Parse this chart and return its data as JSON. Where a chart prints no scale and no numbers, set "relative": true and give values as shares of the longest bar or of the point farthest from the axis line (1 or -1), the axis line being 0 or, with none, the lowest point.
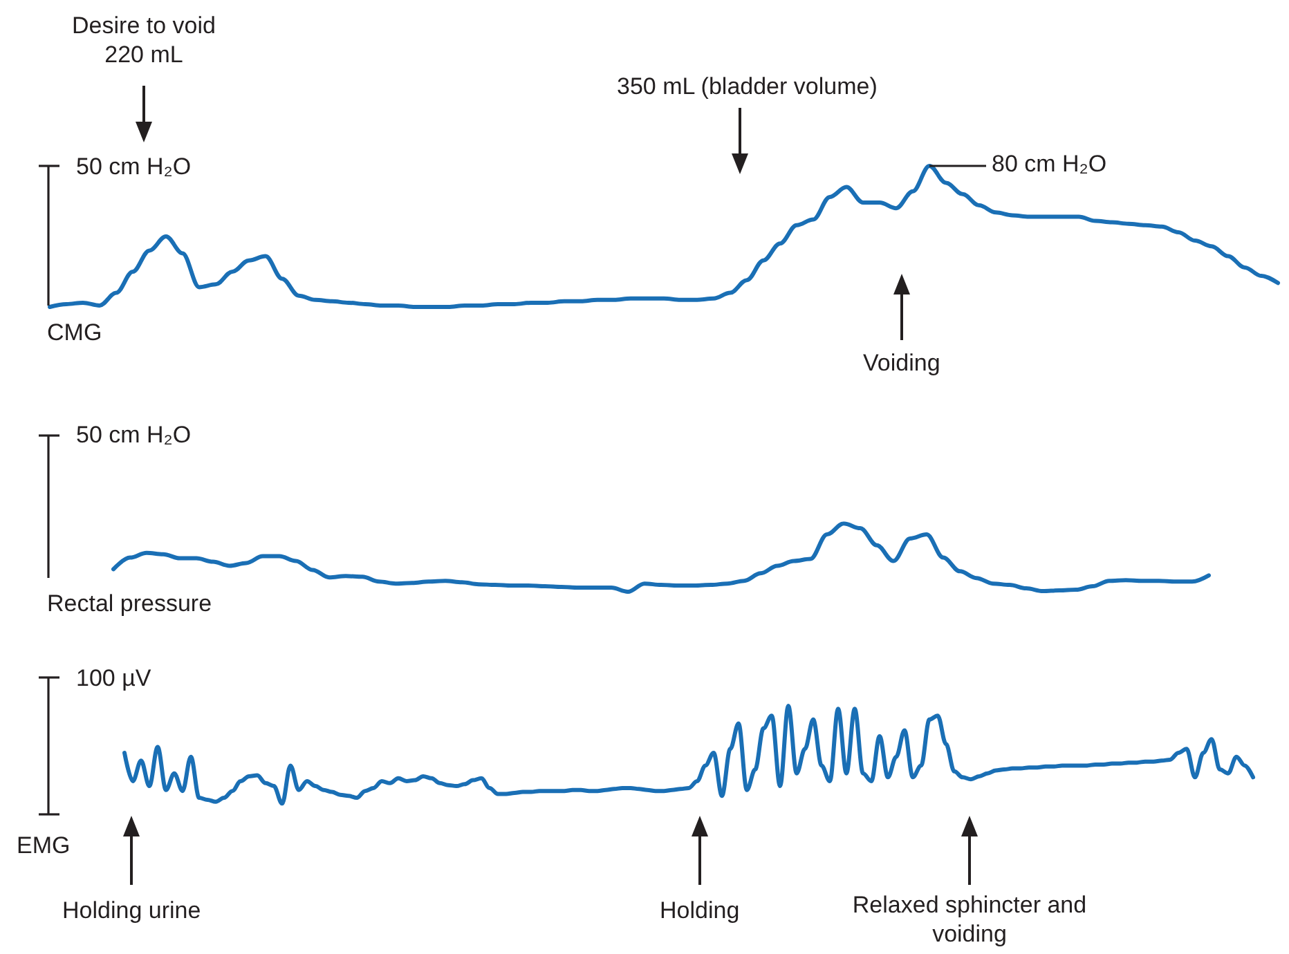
{
  "chart_data": [
    {
      "type": "line",
      "relative": true,
      "color": "#1a6fb5",
      "annotations": [
        "50 cm H₂O",
        "Desire to void 220 mL",
        "350 mL (bladder volume)",
        "80 cm H₂O",
        "Voiding",
        "CMG"
      ],
      "categories": [
        null,
        null,
        null,
        null,
        null,
        null,
        null,
        null,
        null,
        null,
        null,
        null,
        null,
        null,
        null,
        null,
        null,
        null,
        null,
        null,
        null,
        null,
        null,
        null,
        null,
        null,
        null,
        null,
        null,
        null,
        null,
        null,
        null,
        null,
        null,
        null,
        null,
        null,
        null,
        null,
        null,
        null,
        null,
        null,
        null,
        null,
        null,
        null,
        null,
        null,
        null,
        null,
        null,
        null,
        null,
        null,
        null,
        null,
        null,
        null,
        null,
        null,
        null,
        null,
        null,
        null,
        null,
        null,
        null,
        null,
        null,
        null,
        null,
        null,
        null
      ],
      "values": [
        0,
        0.02,
        0.03,
        0.01,
        0.1,
        0.25,
        0.4,
        0.5,
        0.38,
        0.14,
        0.16,
        0.25,
        0.33,
        0.36,
        0.2,
        0.08,
        0.05,
        0.04,
        0.03,
        0.02,
        0.01,
        0.01,
        0,
        0,
        0,
        0.01,
        0.01,
        0.02,
        0.02,
        0.03,
        0.03,
        0.04,
        0.04,
        0.05,
        0.05,
        0.06,
        0.06,
        0.06,
        0.05,
        0.05,
        0.06,
        0.1,
        0.19,
        0.33,
        0.45,
        0.58,
        0.62,
        0.78,
        0.85,
        0.74,
        0.74,
        0.7,
        0.82,
        1,
        0.88,
        0.8,
        0.72,
        0.67,
        0.65,
        0.64,
        0.64,
        0.64,
        0.64,
        0.61,
        0.6,
        0.59,
        0.58,
        0.57,
        0.53,
        0.47,
        0.43,
        0.36,
        0.28,
        0.22,
        0.17
      ]
    },
    {
      "type": "line",
      "relative": true,
      "color": "#1a6fb5",
      "annotations": [
        "50 cm H₂O",
        "Rectal pressure"
      ],
      "categories": [
        null,
        null,
        null,
        null,
        null,
        null,
        null,
        null,
        null,
        null,
        null,
        null,
        null,
        null,
        null,
        null,
        null,
        null,
        null,
        null,
        null,
        null,
        null,
        null,
        null,
        null,
        null,
        null,
        null,
        null,
        null,
        null,
        null,
        null,
        null,
        null,
        null,
        null,
        null,
        null,
        null,
        null,
        null,
        null,
        null,
        null,
        null,
        null,
        null,
        null,
        null,
        null,
        null,
        null,
        null,
        null,
        null,
        null,
        null,
        null,
        null,
        null,
        null,
        null,
        null,
        null,
        null
      ],
      "values": [
        0.33,
        0.5,
        0.57,
        0.55,
        0.49,
        0.49,
        0.44,
        0.38,
        0.42,
        0.52,
        0.52,
        0.45,
        0.32,
        0.21,
        0.23,
        0.22,
        0.15,
        0.12,
        0.13,
        0.15,
        0.16,
        0.14,
        0.11,
        0.1,
        0.09,
        0.09,
        0.08,
        0.07,
        0.06,
        0.06,
        0.06,
        0,
        0.12,
        0.1,
        0.09,
        0.09,
        0.1,
        0.12,
        0.16,
        0.27,
        0.38,
        0.45,
        0.48,
        0.84,
        1,
        0.93,
        0.68,
        0.45,
        0.78,
        0.84,
        0.5,
        0.3,
        0.2,
        0.12,
        0.1,
        0.05,
        0.01,
        0.02,
        0.03,
        0.08,
        0.16,
        0.17,
        0.16,
        0.16,
        0.15,
        0.15,
        0.24
      ]
    },
    {
      "type": "line",
      "relative": true,
      "color": "#1a6fb5",
      "annotations": [
        "100 µV",
        "Holding urine",
        "Holding",
        "Relaxed sphincter and voiding",
        "EMG"
      ],
      "categories": [
        null,
        null,
        null,
        null,
        null,
        null,
        null,
        null,
        null,
        null,
        null,
        null,
        null,
        null,
        null,
        null,
        null,
        null,
        null,
        null,
        null,
        null,
        null,
        null,
        null,
        null,
        null,
        null,
        null,
        null,
        null,
        null,
        null,
        null,
        null,
        null,
        null,
        null,
        null,
        null,
        null,
        null,
        null,
        null,
        null,
        null,
        null,
        null,
        null,
        null,
        null,
        null,
        null,
        null,
        null,
        null,
        null,
        null,
        null,
        null,
        null,
        null,
        null,
        null,
        null,
        null,
        null,
        null,
        null,
        null,
        null,
        null,
        null,
        null,
        null,
        null,
        null,
        null,
        null,
        null,
        null,
        null,
        null,
        null,
        null,
        null,
        null,
        null,
        null,
        null,
        null,
        null,
        null,
        null,
        null,
        null,
        null,
        null,
        null,
        null,
        null,
        null,
        null,
        null,
        null,
        null,
        null,
        null,
        null,
        null,
        null,
        null,
        null,
        null,
        null,
        null,
        null,
        null,
        null,
        null,
        null,
        null,
        null,
        null,
        null,
        null,
        null,
        null,
        null,
        null,
        null,
        null,
        null,
        null,
        null,
        null,
        null
      ],
      "values": [
        0.52,
        0.23,
        0.44,
        0.18,
        0.58,
        0.14,
        0.31,
        0.13,
        0.48,
        0.06,
        0.04,
        0.02,
        0.06,
        0.13,
        0.23,
        0.28,
        0.29,
        0.21,
        0.18,
        0,
        0.39,
        0.14,
        0.23,
        0.18,
        0.14,
        0.12,
        0.09,
        0.08,
        0.06,
        0.13,
        0.16,
        0.23,
        0.21,
        0.26,
        0.23,
        0.24,
        0.28,
        0.26,
        0.21,
        0.19,
        0.18,
        0.2,
        0.24,
        0.26,
        0.16,
        0.1,
        0.1,
        0.11,
        0.12,
        0.12,
        0.13,
        0.13,
        0.13,
        0.13,
        0.14,
        0.14,
        0.13,
        0.13,
        0.14,
        0.15,
        0.16,
        0.16,
        0.15,
        0.14,
        0.13,
        0.13,
        0.14,
        0.15,
        0.16,
        0.23,
        0.39,
        0.52,
        0.08,
        0.56,
        0.82,
        0.14,
        0.35,
        0.77,
        0.9,
        0.18,
        1,
        0.31,
        0.56,
        0.86,
        0.39,
        0.23,
        0.97,
        0.31,
        0.97,
        0.31,
        0.23,
        0.69,
        0.27,
        0.48,
        0.75,
        0.27,
        0.39,
        0.86,
        0.9,
        0.61,
        0.33,
        0.27,
        0.25,
        0.28,
        0.31,
        0.34,
        0.35,
        0.36,
        0.36,
        0.37,
        0.37,
        0.38,
        0.38,
        0.39,
        0.39,
        0.39,
        0.39,
        0.4,
        0.4,
        0.41,
        0.41,
        0.42,
        0.42,
        0.43,
        0.43,
        0.44,
        0.45,
        0.52,
        0.56,
        0.27,
        0.52,
        0.66,
        0.35,
        0.31,
        0.48,
        0.39,
        0.27
      ]
    }
  ]
}
